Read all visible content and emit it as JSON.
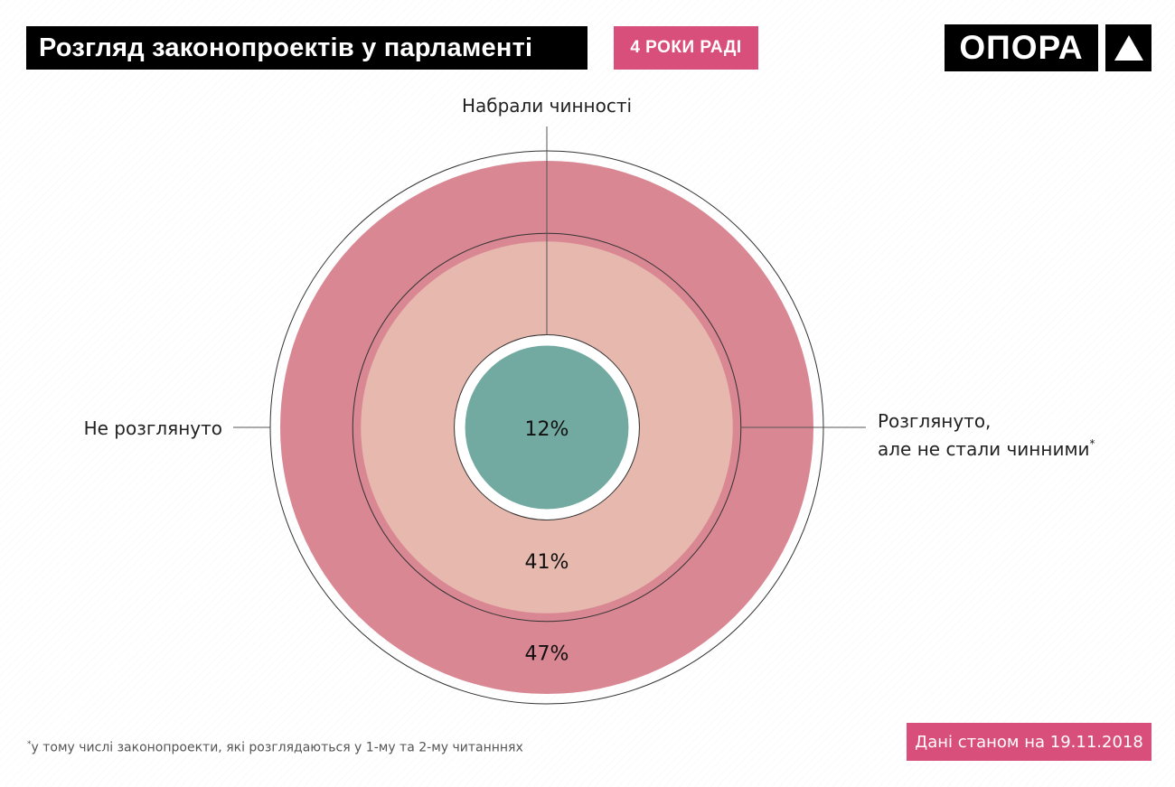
{
  "header": {
    "title": "Розгляд законопроектів у парламенті",
    "tag": "4 РОКИ РАДІ",
    "logo_text": "ОПОРА"
  },
  "colors": {
    "outer": "#d98793",
    "middle": "#e6b8ae",
    "inner": "#72aaa1",
    "accent": "#d94f7c"
  },
  "chart_data": {
    "type": "nested-circles",
    "series": [
      {
        "name": "Набрали чинності",
        "value": 12,
        "label": "12%"
      },
      {
        "name": "Розглянуто, але не стали чинними*",
        "value": 41,
        "label": "41%"
      },
      {
        "name": "Не розглянуто",
        "value": 47,
        "label": "47%"
      }
    ],
    "labels": {
      "top": "Набрали чинності",
      "left": "Не розглянуто",
      "right_line1": "Розглянуто,",
      "right_line2": "але не стали чинними",
      "right_mark": "*"
    }
  },
  "footer": {
    "footnote_mark": "*",
    "footnote": "у тому числі законопроекти, які розглядаються у 1-му та 2-му читанннях",
    "date": "Дані станом на 19.11.2018"
  }
}
